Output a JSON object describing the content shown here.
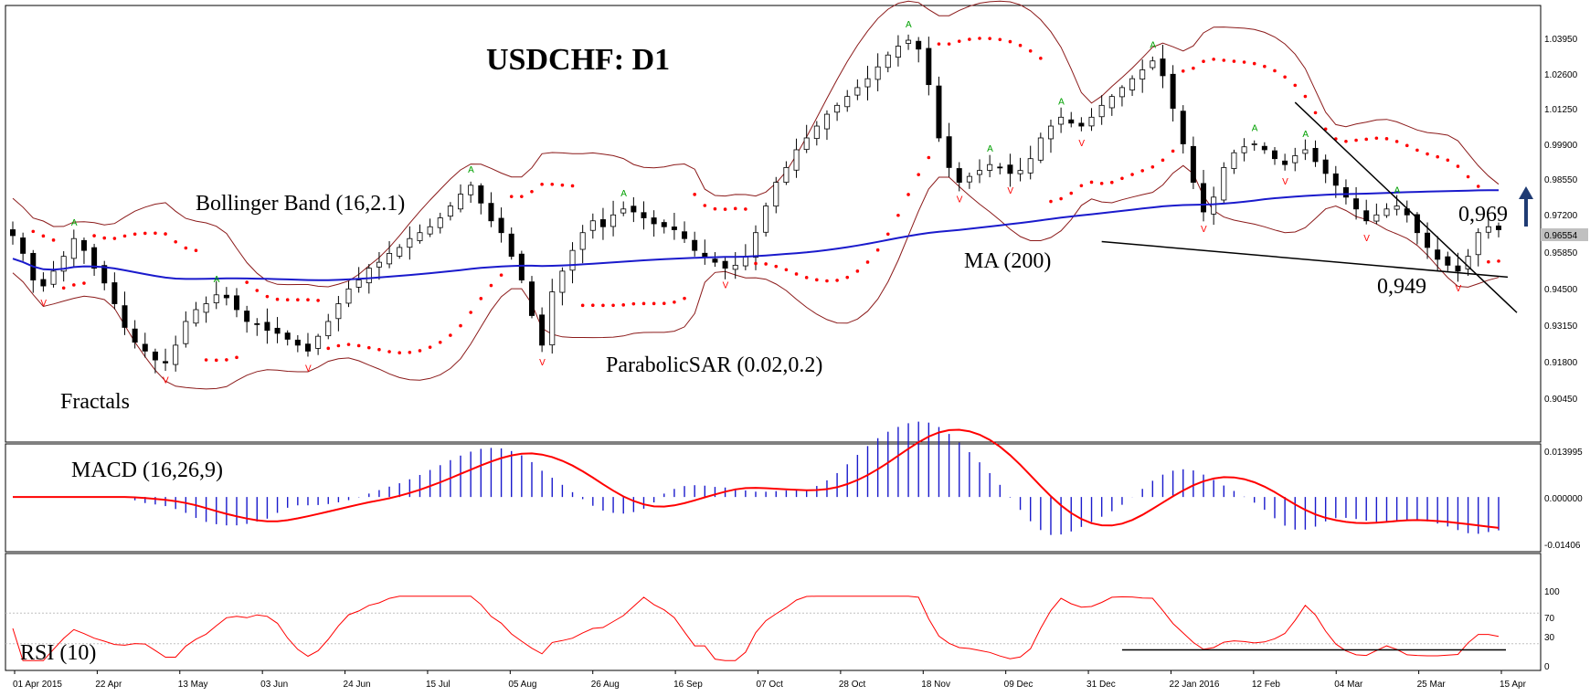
{
  "chart_data": {
    "type": "candlestick",
    "title": "USDCHF: D1",
    "symbol": "USDCHF",
    "timeframe": "D1",
    "last_price": "0.96554",
    "x_tick_labels": [
      "01 Apr 2015",
      "22 Apr",
      "13 May",
      "03 Jun",
      "24 Jun",
      "15 Jul",
      "05 Aug",
      "26 Aug",
      "16 Sep",
      "07 Oct",
      "28 Oct",
      "18 Nov",
      "09 Dec",
      "31 Dec",
      "22 Jan 2016",
      "12 Feb",
      "04 Mar",
      "25 Mar",
      "15 Apr"
    ],
    "price_panel": {
      "ylim": [
        0.8985,
        1.0435
      ],
      "y_tick_labels": [
        "1.03950",
        "1.02600",
        "1.01250",
        "0.99900",
        "0.98550",
        "0.97200",
        "0.95850",
        "0.94500",
        "0.93150",
        "0.91800",
        "0.90450"
      ],
      "approx_close_series": [
        0.967,
        0.961,
        0.952,
        0.95,
        0.955,
        0.96,
        0.966,
        0.962,
        0.956,
        0.951,
        0.944,
        0.936,
        0.931,
        0.928,
        0.925,
        0.924,
        0.93,
        0.938,
        0.942,
        0.944,
        0.947,
        0.946,
        0.942,
        0.938,
        0.937,
        0.935,
        0.934,
        0.932,
        0.93,
        0.928,
        0.933,
        0.938,
        0.944,
        0.949,
        0.952,
        0.956,
        0.958,
        0.961,
        0.963,
        0.966,
        0.968,
        0.97,
        0.973,
        0.977,
        0.981,
        0.984,
        0.978,
        0.972,
        0.968,
        0.96,
        0.952,
        0.94,
        0.93,
        0.948,
        0.955,
        0.962,
        0.968,
        0.972,
        0.97,
        0.974,
        0.976,
        0.975,
        0.973,
        0.971,
        0.97,
        0.969,
        0.966,
        0.962,
        0.96,
        0.958,
        0.956,
        0.957,
        0.96,
        0.968,
        0.977,
        0.985,
        0.99,
        0.996,
        1.0,
        1.004,
        1.008,
        1.011,
        1.014,
        1.017,
        1.02,
        1.024,
        1.028,
        1.031,
        1.033,
        1.03,
        1.018,
        1.0,
        0.99,
        0.985,
        0.987,
        0.989,
        0.991,
        0.99,
        0.988,
        0.989,
        0.993,
        1.0,
        1.004,
        1.007,
        1.005,
        1.004,
        1.007,
        1.011,
        1.014,
        1.017,
        1.02,
        1.023,
        1.026,
        1.021,
        1.01,
        0.998,
        0.985,
        0.975,
        0.98,
        0.99,
        0.995,
        0.997,
        0.998,
        0.996,
        0.993,
        0.991,
        0.994,
        0.996,
        0.992,
        0.988,
        0.984,
        0.98,
        0.976,
        0.972,
        0.974,
        0.976,
        0.977,
        0.974,
        0.968,
        0.963,
        0.959,
        0.957,
        0.955,
        0.96,
        0.968,
        0.97,
        0.969
      ],
      "annotations": [
        "Bollinger Band (16,2.1)",
        "Fractals",
        "ParabolicSAR (0.02,0.2)",
        "MA (200)",
        "0,969",
        "0,949"
      ],
      "series": [
        {
          "name": "MA (200)",
          "color": "#1a1acc"
        },
        {
          "name": "Bollinger Band (16,2.1)",
          "color": "#8b1a1a"
        },
        {
          "name": "ParabolicSAR (0.02,0.2)",
          "color": "#ff0000"
        },
        {
          "name": "Fractals",
          "up_color": "#00a000",
          "down_color": "#ff0000"
        }
      ],
      "forecast_arrow": "up"
    },
    "macd_panel": {
      "label": "MACD (16,26,9)",
      "ylim": [
        -0.016,
        0.0155
      ],
      "y_tick_labels": [
        "0.013995",
        "0.000000",
        "-0.01406"
      ],
      "histogram_color": "#1a1acc",
      "signal_color": "#ff0000"
    },
    "rsi_panel": {
      "label": "RSI (10)",
      "ylim": [
        0,
        100
      ],
      "y_tick_labels": [
        "100",
        "70",
        "30",
        "0"
      ],
      "line_color": "#ff0000"
    }
  }
}
